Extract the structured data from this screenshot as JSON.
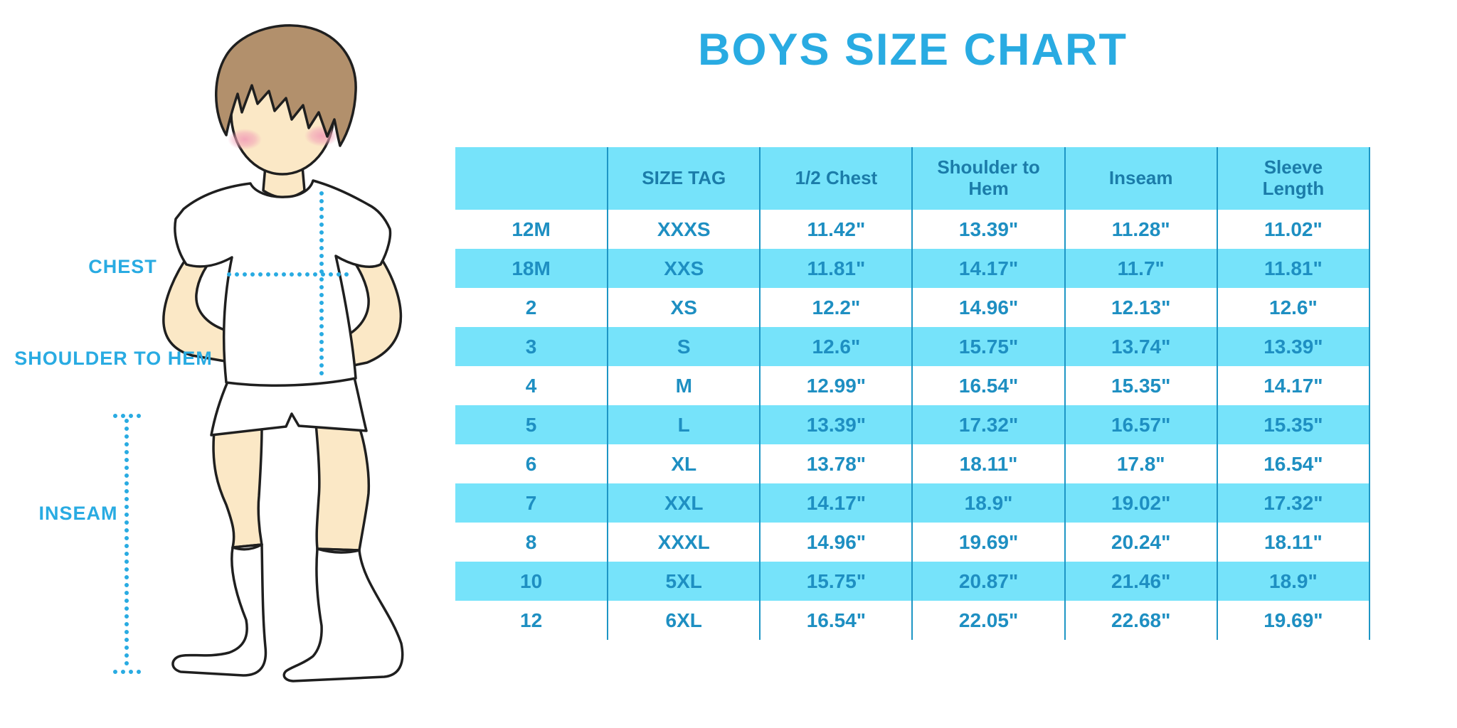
{
  "title": "BOYS SIZE CHART",
  "figure": {
    "labels": {
      "chest": "CHEST",
      "shoulder_to_hem": "SHOULDER TO HEM",
      "inseam": "INSEAM"
    }
  },
  "chart_data": {
    "type": "table",
    "title": "BOYS SIZE CHART",
    "columns": [
      "",
      "SIZE TAG",
      "1/2 Chest",
      "Shoulder to Hem",
      "Inseam",
      "Sleeve Length"
    ],
    "rows": [
      [
        "12M",
        "XXXS",
        "11.42\"",
        "13.39\"",
        "11.28\"",
        "11.02\""
      ],
      [
        "18M",
        "XXS",
        "11.81\"",
        "14.17\"",
        "11.7\"",
        "11.81\""
      ],
      [
        "2",
        "XS",
        "12.2\"",
        "14.96\"",
        "12.13\"",
        "12.6\""
      ],
      [
        "3",
        "S",
        "12.6\"",
        "15.75\"",
        "13.74\"",
        "13.39\""
      ],
      [
        "4",
        "M",
        "12.99\"",
        "16.54\"",
        "15.35\"",
        "14.17\""
      ],
      [
        "5",
        "L",
        "13.39\"",
        "17.32\"",
        "16.57\"",
        "15.35\""
      ],
      [
        "6",
        "XL",
        "13.78\"",
        "18.11\"",
        "17.8\"",
        "16.54\""
      ],
      [
        "7",
        "XXL",
        "14.17\"",
        "18.9\"",
        "19.02\"",
        "17.32\""
      ],
      [
        "8",
        "XXXL",
        "14.96\"",
        "19.69\"",
        "20.24\"",
        "18.11\""
      ],
      [
        "10",
        "5XL",
        "15.75\"",
        "20.87\"",
        "21.46\"",
        "18.9\""
      ],
      [
        "12",
        "6XL",
        "16.54\"",
        "22.05\"",
        "22.68\"",
        "19.69\""
      ]
    ],
    "units": "inches",
    "layout": {
      "stripe_style": "alternating-rows",
      "grid": "vertical-lines-only"
    }
  },
  "colors": {
    "accent_blue": "#29ABE2",
    "table_stripe": "#76E3FA",
    "table_line": "#1E96C5",
    "header_text": "#1B7CA9",
    "cell_text": "#1E8FC2",
    "hair": "#B2906C",
    "skin": "#FBE8C6",
    "blush": "#F2A3B8",
    "outline": "#1F1F1F"
  }
}
